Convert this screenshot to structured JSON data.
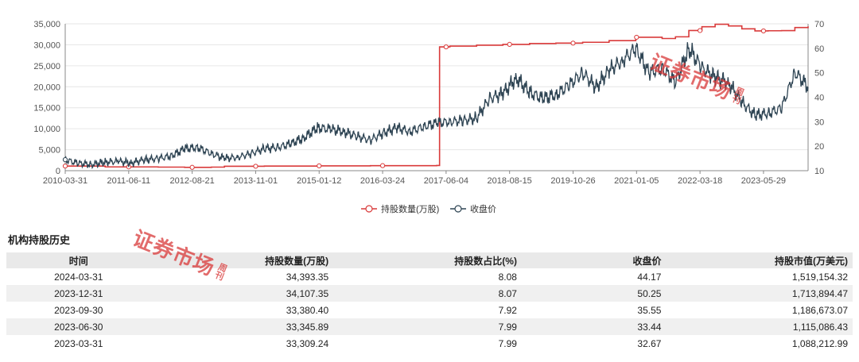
{
  "chart_data": {
    "type": "line",
    "x_tick_labels": [
      "2010-03-31",
      "2011-06-11",
      "2012-08-21",
      "2013-11-01",
      "2015-01-12",
      "2016-03-24",
      "2017-06-04",
      "2018-08-15",
      "2019-10-26",
      "2021-01-05",
      "2022-03-18",
      "2023-05-29"
    ],
    "y_left": {
      "min": 0,
      "max": 35000,
      "ticks": [
        "0",
        "5,000",
        "10,000",
        "15,000",
        "20,000",
        "25,000",
        "30,000",
        "35,000"
      ]
    },
    "y_right": {
      "min": 10,
      "max": 70,
      "ticks": [
        "10",
        "20",
        "30",
        "40",
        "50",
        "60",
        "70"
      ]
    },
    "legend_position": "bottom-center",
    "grid": "horizontal",
    "series": [
      {
        "name": "持股数量(万股)",
        "axis": "left",
        "color": "#d93a3a",
        "step": true,
        "points": [
          [
            "2010-03-31",
            1100
          ],
          [
            "2010-12-31",
            900
          ],
          [
            "2011-12-31",
            850
          ],
          [
            "2012-06-30",
            800
          ],
          [
            "2012-12-31",
            850
          ],
          [
            "2013-03-31",
            1050
          ],
          [
            "2013-12-31",
            1100
          ],
          [
            "2014-12-31",
            1150
          ],
          [
            "2015-12-31",
            1200
          ],
          [
            "2016-12-31",
            1200
          ],
          [
            "2017-03-31",
            1250
          ],
          [
            "2017-04-20",
            29500
          ],
          [
            "2017-06-30",
            29700
          ],
          [
            "2017-12-31",
            29900
          ],
          [
            "2018-06-30",
            30100
          ],
          [
            "2018-12-31",
            30300
          ],
          [
            "2019-06-30",
            30400
          ],
          [
            "2019-12-31",
            30600
          ],
          [
            "2020-06-30",
            31000
          ],
          [
            "2020-12-31",
            31800
          ],
          [
            "2021-06-30",
            31500
          ],
          [
            "2021-09-30",
            31900
          ],
          [
            "2021-12-31",
            33400
          ],
          [
            "2022-03-31",
            34300
          ],
          [
            "2022-06-30",
            34900
          ],
          [
            "2022-09-30",
            34500
          ],
          [
            "2022-12-31",
            33800
          ],
          [
            "2023-03-31",
            33309.24
          ],
          [
            "2023-06-30",
            33345.89
          ],
          [
            "2023-09-30",
            33380.4
          ],
          [
            "2023-12-31",
            34107.35
          ],
          [
            "2024-03-31",
            34393.35
          ]
        ],
        "markers": [
          "2010-03-31",
          "2011-06-11",
          "2012-08-21",
          "2013-11-01",
          "2015-01-12",
          "2016-03-24",
          "2017-06-04",
          "2018-08-15",
          "2019-10-26",
          "2021-01-05",
          "2022-03-18",
          "2023-05-29"
        ]
      },
      {
        "name": "收盘价",
        "axis": "right",
        "color": "#2f4554",
        "points": [
          [
            "2010-03-31",
            14.5
          ],
          [
            "2010-06-30",
            13.0
          ],
          [
            "2010-09-30",
            12.5
          ],
          [
            "2010-12-31",
            13.5
          ],
          [
            "2011-03-31",
            13.8
          ],
          [
            "2011-06-30",
            13.2
          ],
          [
            "2011-09-30",
            14.5
          ],
          [
            "2011-12-31",
            15.0
          ],
          [
            "2012-03-31",
            16.0
          ],
          [
            "2012-06-30",
            19.0
          ],
          [
            "2012-09-30",
            19.5
          ],
          [
            "2012-12-31",
            17.0
          ],
          [
            "2013-03-31",
            15.0
          ],
          [
            "2013-06-30",
            15.5
          ],
          [
            "2013-09-30",
            17.0
          ],
          [
            "2013-12-31",
            19.0
          ],
          [
            "2014-03-31",
            19.5
          ],
          [
            "2014-06-30",
            21.0
          ],
          [
            "2014-09-30",
            23.5
          ],
          [
            "2014-12-31",
            27.5
          ],
          [
            "2015-03-31",
            27.0
          ],
          [
            "2015-06-30",
            26.0
          ],
          [
            "2015-09-30",
            24.0
          ],
          [
            "2015-12-31",
            22.5
          ],
          [
            "2016-03-31",
            25.5
          ],
          [
            "2016-06-30",
            27.5
          ],
          [
            "2016-09-30",
            26.0
          ],
          [
            "2016-12-31",
            28.0
          ],
          [
            "2017-03-31",
            29.5
          ],
          [
            "2017-06-30",
            30.0
          ],
          [
            "2017-09-30",
            30.5
          ],
          [
            "2017-12-31",
            31.5
          ],
          [
            "2018-03-31",
            39.5
          ],
          [
            "2018-06-30",
            41.5
          ],
          [
            "2018-09-30",
            48.0
          ],
          [
            "2018-12-31",
            42.0
          ],
          [
            "2019-03-31",
            39.5
          ],
          [
            "2019-06-30",
            41.0
          ],
          [
            "2019-09-30",
            45.0
          ],
          [
            "2019-12-31",
            50.0
          ],
          [
            "2020-03-31",
            44.0
          ],
          [
            "2020-06-30",
            51.0
          ],
          [
            "2020-09-30",
            55.0
          ],
          [
            "2020-12-31",
            60.0
          ],
          [
            "2021-03-31",
            50.0
          ],
          [
            "2021-06-30",
            52.0
          ],
          [
            "2021-09-30",
            46.0
          ],
          [
            "2021-12-31",
            60.0
          ],
          [
            "2022-03-31",
            52.0
          ],
          [
            "2022-06-30",
            48.0
          ],
          [
            "2022-09-30",
            46.0
          ],
          [
            "2022-12-31",
            38.0
          ],
          [
            "2023-03-31",
            32.67
          ],
          [
            "2023-06-30",
            33.44
          ],
          [
            "2023-09-30",
            35.55
          ],
          [
            "2023-12-31",
            50.25
          ],
          [
            "2024-03-31",
            44.17
          ]
        ]
      }
    ]
  },
  "section_title": "机构持股历史",
  "table": {
    "headers": [
      "时间",
      "持股数量(万股)",
      "持股数占比(%)",
      "收盘价",
      "持股市值(万美元)"
    ],
    "rows": [
      [
        "2024-03-31",
        "34,393.35",
        "8.08",
        "44.17",
        "1,519,154.32"
      ],
      [
        "2023-12-31",
        "34,107.35",
        "8.07",
        "50.25",
        "1,713,894.47"
      ],
      [
        "2023-09-30",
        "33,380.40",
        "7.92",
        "35.55",
        "1,186,673.07"
      ],
      [
        "2023-06-30",
        "33,345.89",
        "7.99",
        "33.44",
        "1,115,086.43"
      ],
      [
        "2023-03-31",
        "33,309.24",
        "7.99",
        "32.67",
        "1,088,212.99"
      ]
    ]
  },
  "watermark": {
    "main": "证券市场",
    "sub": "周刊"
  },
  "colors": {
    "hold_line": "#d93a3a",
    "price_line": "#2f4554",
    "grid": "#e6e6e6",
    "header_bg": "#e9e9e9",
    "watermark": "#d93a3a"
  }
}
